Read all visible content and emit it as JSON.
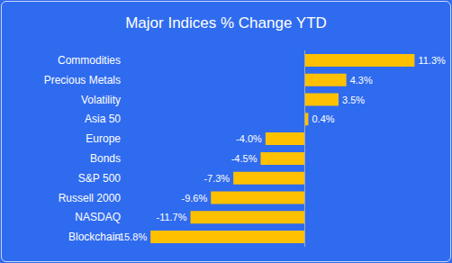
{
  "chart_data": {
    "type": "bar",
    "orientation": "horizontal",
    "title": "Major Indices % Change YTD",
    "categories": [
      "Commodities",
      "Precious Metals",
      "Volatility",
      "Asia 50",
      "Europe",
      "Bonds",
      "S&P 500",
      "Russell 2000",
      "NASDAQ",
      "Blockchain"
    ],
    "values": [
      11.3,
      4.3,
      3.5,
      0.4,
      -4.0,
      -4.5,
      -7.3,
      -9.6,
      -11.7,
      -15.8
    ],
    "value_labels": [
      "11.3%",
      "4.3%",
      "3.5%",
      "0.4%",
      "-4.0%",
      "-4.5%",
      "-7.3%",
      "-9.6%",
      "-11.7%",
      "-15.8%"
    ],
    "color": "#ffc000",
    "xlim": [
      -16,
      12
    ],
    "xticks": [
      -16,
      -12,
      -8,
      -4,
      0,
      4,
      8,
      12
    ],
    "grid": false,
    "data_labels": true,
    "tick_labels": "y"
  }
}
